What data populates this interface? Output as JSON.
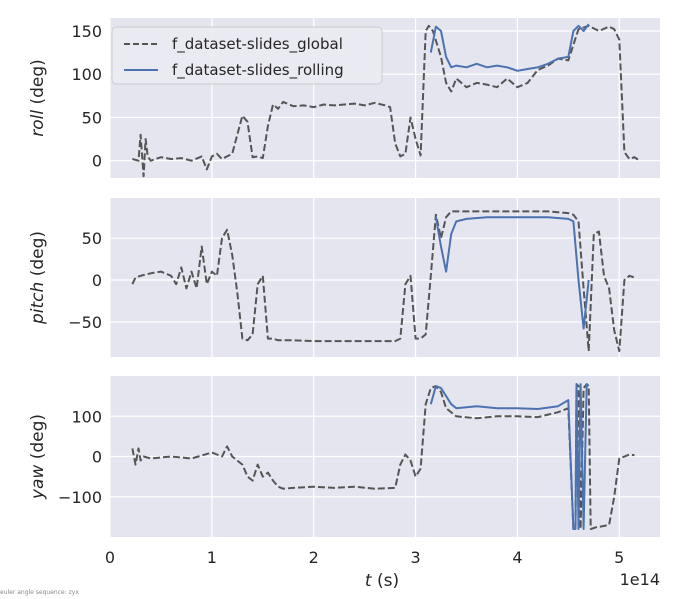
{
  "footer_note": "euler angle sequence: zyx",
  "chart_data": {
    "type": "line",
    "x_scale_label": "1e14",
    "xlabel_italic": "t",
    "xlabel_rest": " (s)",
    "xlim": [
      0,
      5.4
    ],
    "x_ticks": [
      0,
      1,
      2,
      3,
      4,
      5
    ],
    "x_tick_labels": [
      "0",
      "1",
      "2",
      "3",
      "4",
      "5"
    ],
    "grid": true,
    "background_color": "#e5e5f0",
    "legend_position": "top-left",
    "series_styles": {
      "f_dataset-slides_global": {
        "color": "#555555",
        "dash": "dashed"
      },
      "f_dataset-slides_rolling": {
        "color": "#4c72b0",
        "dash": "solid"
      }
    },
    "legend": [
      "f_dataset-slides_global",
      "f_dataset-slides_rolling"
    ],
    "panels": [
      {
        "id": "roll",
        "ylabel_italic": "roll",
        "ylabel_rest": " (deg)",
        "ylim": [
          -20,
          165
        ],
        "y_ticks": [
          0,
          50,
          100,
          150
        ],
        "y_tick_labels": [
          "0",
          "50",
          "100",
          "150"
        ],
        "series": [
          {
            "name": "f_dataset-slides_global",
            "x": [
              0.22,
              0.28,
              0.3,
              0.33,
              0.35,
              0.37,
              0.4,
              0.5,
              0.6,
              0.7,
              0.8,
              0.9,
              0.95,
              1.0,
              1.05,
              1.1,
              1.2,
              1.3,
              1.35,
              1.4,
              1.45,
              1.5,
              1.55,
              1.6,
              1.65,
              1.7,
              1.8,
              1.9,
              2.0,
              2.1,
              2.2,
              2.3,
              2.4,
              2.5,
              2.6,
              2.7,
              2.75,
              2.8,
              2.85,
              2.9,
              2.95,
              3.0,
              3.05,
              3.1,
              3.13,
              3.17,
              3.25,
              3.3,
              3.35,
              3.4,
              3.5,
              3.6,
              3.7,
              3.8,
              3.9,
              4.0,
              4.1,
              4.2,
              4.3,
              4.4,
              4.5,
              4.6,
              4.7,
              4.8,
              4.9,
              4.95,
              5.0,
              5.05,
              5.1,
              5.15,
              5.2
            ],
            "y": [
              2,
              0,
              30,
              -18,
              25,
              5,
              0,
              4,
              2,
              3,
              0,
              5,
              -10,
              5,
              8,
              2,
              8,
              52,
              45,
              4,
              5,
              3,
              40,
              65,
              60,
              68,
              63,
              64,
              62,
              65,
              64,
              65,
              66,
              64,
              67,
              64,
              62,
              20,
              5,
              8,
              50,
              25,
              6,
              150,
              156,
              150,
              120,
              90,
              80,
              95,
              85,
              90,
              88,
              85,
              95,
              85,
              90,
              105,
              110,
              118,
              116,
              152,
              156,
              150,
              155,
              152,
              140,
              10,
              2,
              4,
              0
            ]
          },
          {
            "name": "f_dataset-slides_rolling",
            "x": [
              3.15,
              3.2,
              3.25,
              3.3,
              3.35,
              3.4,
              3.5,
              3.6,
              3.7,
              3.8,
              3.9,
              4.0,
              4.1,
              4.2,
              4.3,
              4.4,
              4.5,
              4.55,
              4.6,
              4.65,
              4.7
            ],
            "y": [
              125,
              155,
              150,
              120,
              108,
              110,
              108,
              112,
              108,
              110,
              108,
              104,
              106,
              108,
              112,
              118,
              120,
              150,
              156,
              150,
              158
            ]
          }
        ]
      },
      {
        "id": "pitch",
        "ylabel_italic": "pitch",
        "ylabel_rest": " (deg)",
        "ylim": [
          -92,
          98
        ],
        "y_ticks": [
          50,
          0,
          -50
        ],
        "y_tick_labels": [
          "50",
          "0",
          "−50"
        ],
        "series": [
          {
            "name": "f_dataset-slides_global",
            "x": [
              0.22,
              0.25,
              0.3,
              0.4,
              0.5,
              0.6,
              0.65,
              0.7,
              0.75,
              0.8,
              0.85,
              0.9,
              0.95,
              1.0,
              1.05,
              1.1,
              1.15,
              1.2,
              1.25,
              1.3,
              1.35,
              1.4,
              1.45,
              1.5,
              1.55,
              1.6,
              1.65,
              1.7,
              1.8,
              2.0,
              2.2,
              2.4,
              2.6,
              2.8,
              2.85,
              2.9,
              2.95,
              3.0,
              3.05,
              3.1,
              3.15,
              3.2,
              3.25,
              3.3,
              3.35,
              3.5,
              3.7,
              3.9,
              4.1,
              4.3,
              4.5,
              4.55,
              4.6,
              4.65,
              4.7,
              4.75,
              4.8,
              4.85,
              4.9,
              4.95,
              5.0,
              5.05,
              5.1,
              5.15
            ],
            "y": [
              -5,
              3,
              5,
              8,
              10,
              5,
              -5,
              15,
              -10,
              10,
              -10,
              40,
              -5,
              10,
              5,
              50,
              60,
              30,
              -15,
              -70,
              -72,
              -65,
              -5,
              5,
              -70,
              -70,
              -72,
              -72,
              -72,
              -73,
              -73,
              -73,
              -73,
              -73,
              -70,
              -5,
              5,
              -70,
              -70,
              -65,
              5,
              78,
              50,
              75,
              82,
              82,
              82,
              82,
              82,
              82,
              80,
              78,
              70,
              -10,
              -85,
              55,
              58,
              5,
              -10,
              -60,
              -85,
              0,
              5,
              3
            ]
          },
          {
            "name": "f_dataset-slides_rolling",
            "x": [
              3.2,
              3.25,
              3.3,
              3.35,
              3.4,
              3.5,
              3.7,
              3.9,
              4.1,
              4.3,
              4.5,
              4.55,
              4.6,
              4.65,
              4.7
            ],
            "y": [
              75,
              40,
              10,
              55,
              70,
              73,
              75,
              75,
              75,
              75,
              73,
              70,
              0,
              -58,
              0
            ]
          }
        ]
      },
      {
        "id": "yaw",
        "ylabel_italic": "yaw",
        "ylabel_rest": " (deg)",
        "ylim": [
          -200,
          200
        ],
        "y_ticks": [
          100,
          0,
          -100
        ],
        "y_tick_labels": [
          "100",
          "0",
          "−100"
        ],
        "series": [
          {
            "name": "f_dataset-slides_global",
            "x": [
              0.22,
              0.25,
              0.28,
              0.3,
              0.33,
              0.4,
              0.6,
              0.8,
              1.0,
              1.1,
              1.15,
              1.2,
              1.3,
              1.35,
              1.4,
              1.45,
              1.5,
              1.55,
              1.6,
              1.65,
              1.7,
              1.8,
              2.0,
              2.2,
              2.4,
              2.6,
              2.8,
              2.85,
              2.9,
              2.95,
              3.0,
              3.05,
              3.1,
              3.15,
              3.2,
              3.25,
              3.3,
              3.4,
              3.6,
              3.8,
              4.0,
              4.2,
              4.4,
              4.5,
              4.55,
              4.57,
              4.58,
              4.6,
              4.62,
              4.65,
              4.68,
              4.7,
              4.72,
              4.75,
              4.78,
              4.8,
              4.9,
              4.95,
              5.0,
              5.05,
              5.1,
              5.15
            ],
            "y": [
              20,
              -20,
              20,
              -10,
              0,
              -5,
              0,
              -5,
              10,
              0,
              25,
              0,
              -20,
              -50,
              -60,
              -20,
              -50,
              -40,
              -60,
              -75,
              -80,
              -78,
              -75,
              -78,
              -75,
              -80,
              -78,
              -20,
              5,
              -10,
              -50,
              -30,
              130,
              170,
              175,
              160,
              120,
              100,
              95,
              100,
              100,
              98,
              110,
              120,
              -180,
              -180,
              180,
              175,
              -180,
              170,
              180,
              175,
              -180,
              -178,
              -175,
              -175,
              -170,
              -100,
              -5,
              0,
              5,
              3
            ]
          },
          {
            "name": "f_dataset-slides_rolling",
            "x": [
              3.15,
              3.2,
              3.25,
              3.3,
              3.35,
              3.4,
              3.6,
              3.8,
              4.0,
              4.2,
              4.4,
              4.5,
              4.55,
              4.57,
              4.58,
              4.6,
              4.62,
              4.65,
              4.68,
              4.7
            ],
            "y": [
              130,
              175,
              170,
              150,
              130,
              120,
              125,
              120,
              120,
              118,
              125,
              140,
              -180,
              -180,
              180,
              -180,
              180,
              -180,
              180,
              175
            ]
          }
        ]
      }
    ]
  }
}
